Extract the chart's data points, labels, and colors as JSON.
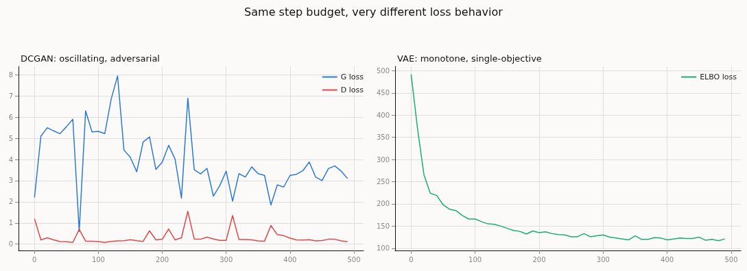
{
  "chart_data": [
    {
      "type": "line",
      "title": "DCGAN: oscillating, adversarial",
      "annotations": [
        "Same step budget, very different loss behavior"
      ],
      "x": [
        0,
        10,
        20,
        30,
        40,
        50,
        60,
        70,
        80,
        90,
        100,
        110,
        120,
        130,
        140,
        150,
        160,
        170,
        180,
        190,
        200,
        210,
        220,
        230,
        240,
        250,
        260,
        270,
        280,
        290,
        300,
        310,
        320,
        330,
        340,
        350,
        360,
        370,
        380,
        390,
        400,
        410,
        420,
        430,
        440,
        450,
        460,
        470,
        480,
        490
      ],
      "series": [
        {
          "name": "G loss",
          "color": "#2a7ad6",
          "values": [
            2.2,
            5.1,
            5.5,
            5.35,
            5.22,
            5.55,
            5.9,
            0.6,
            6.3,
            5.3,
            5.33,
            5.22,
            6.85,
            7.95,
            4.45,
            4.1,
            3.42,
            4.82,
            5.07,
            3.53,
            3.88,
            4.67,
            4.02,
            2.17,
            6.9,
            3.52,
            3.32,
            3.58,
            2.27,
            2.77,
            3.45,
            2.03,
            3.33,
            3.17,
            3.65,
            3.33,
            3.25,
            1.85,
            2.8,
            2.7,
            3.25,
            3.3,
            3.47,
            3.88,
            3.17,
            3.0,
            3.57,
            3.7,
            3.45,
            3.1
          ]
        },
        {
          "name": "D loss",
          "color": "#e04848",
          "values": [
            1.2,
            0.2,
            0.3,
            0.2,
            0.12,
            0.11,
            0.08,
            0.7,
            0.14,
            0.14,
            0.12,
            0.08,
            0.13,
            0.15,
            0.16,
            0.21,
            0.16,
            0.13,
            0.63,
            0.2,
            0.23,
            0.71,
            0.2,
            0.3,
            1.55,
            0.24,
            0.23,
            0.33,
            0.24,
            0.18,
            0.18,
            1.35,
            0.22,
            0.22,
            0.2,
            0.15,
            0.14,
            0.88,
            0.45,
            0.4,
            0.28,
            0.2,
            0.19,
            0.21,
            0.15,
            0.17,
            0.23,
            0.23,
            0.15,
            0.12
          ]
        }
      ],
      "xlim": [
        -25,
        515
      ],
      "xticks": [
        0,
        100,
        200,
        300,
        400,
        500
      ],
      "ylim": [
        -0.3,
        8.4
      ],
      "yticks": [
        0,
        1,
        2,
        3,
        4,
        5,
        6,
        7,
        8
      ],
      "grid": true,
      "legend": "top right"
    },
    {
      "type": "line",
      "title": "VAE: monotone, single-objective",
      "x": [
        0,
        10,
        20,
        30,
        40,
        50,
        60,
        70,
        80,
        90,
        100,
        110,
        120,
        130,
        140,
        150,
        160,
        170,
        180,
        190,
        200,
        210,
        220,
        230,
        240,
        250,
        260,
        270,
        280,
        290,
        300,
        310,
        320,
        330,
        340,
        350,
        360,
        370,
        380,
        390,
        400,
        410,
        420,
        430,
        440,
        450,
        460,
        470,
        480,
        490
      ],
      "series": [
        {
          "name": "ELBO loss",
          "color": "#1aab7e",
          "values": [
            492,
            370,
            266,
            224,
            219,
            198,
            188,
            185,
            174,
            166,
            166,
            160,
            155,
            154,
            150,
            145,
            140,
            138,
            132,
            139,
            135,
            137,
            133,
            131,
            130,
            126,
            126,
            133,
            126,
            128,
            130,
            125,
            123,
            121,
            119,
            128,
            120,
            120,
            124,
            123,
            119,
            121,
            123,
            122,
            122,
            125,
            118,
            120,
            117,
            121
          ]
        }
      ],
      "xlim": [
        -25,
        515
      ],
      "xticks": [
        0,
        100,
        200,
        300,
        400,
        500
      ],
      "ylim": [
        95,
        510
      ],
      "yticks": [
        100,
        150,
        200,
        250,
        300,
        350,
        400,
        450,
        500
      ],
      "grid": true,
      "legend": "top right"
    }
  ]
}
